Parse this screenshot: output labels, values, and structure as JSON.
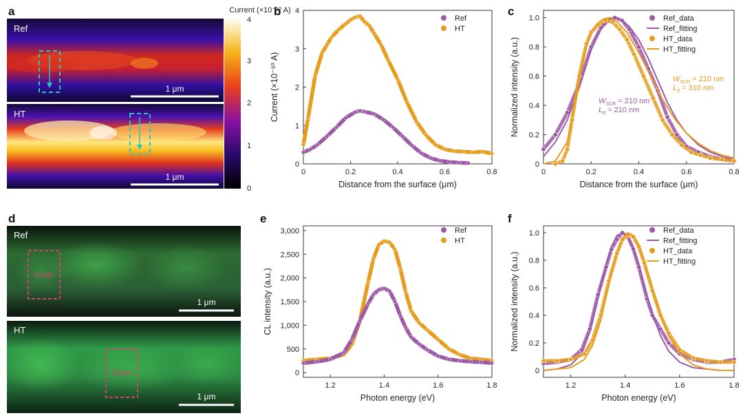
{
  "panel_letters": {
    "a": "a",
    "b": "b",
    "c": "c",
    "d": "d",
    "e": "e",
    "f": "f"
  },
  "colors": {
    "ref": "#9b59a6",
    "ht": "#e69d1e",
    "scale": "#ffffff",
    "box_cyan": "#2ec4b6",
    "box_red": "#d04070"
  },
  "panel_a": {
    "colorbar_title": "Current (×10⁻¹⁰ A)",
    "colorbar_ticks": [
      "4",
      "3",
      "2",
      "1",
      "0"
    ],
    "ref_label": "Ref",
    "ht_label": "HT",
    "scalebar_label": "1 μm"
  },
  "panel_d": {
    "ref_label": "Ref",
    "ht_label": "HT",
    "grain_label": "Grain",
    "scalebar_label": "1 μm"
  },
  "chart_data": [
    {
      "id": "b",
      "type": "line",
      "xlabel": "Distance from the surface (μm)",
      "ylabel": "Current (×10⁻¹⁰ A)",
      "xlim": [
        0,
        0.8
      ],
      "ylim": [
        0,
        4
      ],
      "xticks": [
        0,
        0.2,
        0.4,
        0.6,
        0.8
      ],
      "xtick_labels": [
        "0",
        "0.2",
        "0.4",
        "0.6",
        "0.8"
      ],
      "yticks": [
        0,
        1,
        2,
        3,
        4
      ],
      "ytick_labels": [
        "0",
        "1",
        "2",
        "3",
        "4"
      ],
      "legend": [
        "Ref",
        "HT"
      ],
      "series": [
        {
          "name": "HT",
          "color": "ht",
          "x": [
            0,
            0.02,
            0.05,
            0.08,
            0.1,
            0.12,
            0.15,
            0.18,
            0.2,
            0.22,
            0.24,
            0.26,
            0.28,
            0.3,
            0.33,
            0.36,
            0.4,
            0.44,
            0.48,
            0.52,
            0.56,
            0.6,
            0.64,
            0.68,
            0.72,
            0.76,
            0.8
          ],
          "y": [
            0.5,
            1.2,
            2.3,
            2.9,
            3.1,
            3.3,
            3.5,
            3.65,
            3.75,
            3.82,
            3.85,
            3.7,
            3.6,
            3.4,
            3.1,
            2.7,
            2.2,
            1.6,
            1.1,
            0.75,
            0.5,
            0.38,
            0.33,
            0.32,
            0.3,
            0.32,
            0.27
          ]
        },
        {
          "name": "Ref",
          "color": "ref",
          "x": [
            0,
            0.03,
            0.06,
            0.1,
            0.14,
            0.18,
            0.22,
            0.24,
            0.26,
            0.3,
            0.34,
            0.38,
            0.42,
            0.46,
            0.5,
            0.54,
            0.58,
            0.62,
            0.66,
            0.7
          ],
          "y": [
            0.3,
            0.38,
            0.5,
            0.72,
            0.95,
            1.2,
            1.35,
            1.38,
            1.36,
            1.3,
            1.15,
            0.95,
            0.72,
            0.48,
            0.28,
            0.15,
            0.08,
            0.05,
            0.03,
            0.02
          ]
        }
      ]
    },
    {
      "id": "c",
      "type": "line",
      "xlabel": "Distance from the surface (μm)",
      "ylabel": "Normalized intensity (a.u.)",
      "xlim": [
        0,
        0.8
      ],
      "ylim": [
        0,
        1.05
      ],
      "xticks": [
        0,
        0.2,
        0.4,
        0.6,
        0.8
      ],
      "xtick_labels": [
        "0",
        "0.2",
        "0.4",
        "0.6",
        "0.8"
      ],
      "yticks": [
        0,
        0.2,
        0.4,
        0.6,
        0.8,
        1.0
      ],
      "ytick_labels": [
        "0",
        "0.2",
        "0.4",
        "0.6",
        "0.8",
        "1.0"
      ],
      "legend": [
        "Ref_data",
        "Ref_fitting",
        "HT_data",
        "HT_fitting"
      ],
      "annotations": [
        {
          "text": "W_SCR = 210 nm, L_d = 210 nm",
          "main1": "W",
          "sub1": "SCR",
          "rest1": " = 210 nm",
          "main2": "L",
          "sub2": "d",
          "rest2": " = 210 nm",
          "color": "ref"
        },
        {
          "text": "W_SCR = 210 nm, L_d = 310 nm",
          "main1": "W",
          "sub1": "SCR",
          "rest1": " = 210 nm",
          "main2": "L",
          "sub2": "d",
          "rest2": " = 310 nm",
          "color": "ht"
        }
      ],
      "series": [
        {
          "name": "Ref_data",
          "color": "ref",
          "style": "markers",
          "x": [
            0,
            0.05,
            0.1,
            0.15,
            0.2,
            0.24,
            0.27,
            0.3,
            0.33,
            0.36,
            0.4,
            0.44,
            0.48,
            0.52,
            0.56,
            0.6,
            0.65,
            0.7,
            0.75,
            0.8
          ],
          "y": [
            0.1,
            0.2,
            0.35,
            0.55,
            0.8,
            0.93,
            0.98,
            1.0,
            0.98,
            0.92,
            0.8,
            0.65,
            0.5,
            0.32,
            0.2,
            0.12,
            0.08,
            0.05,
            0.03,
            0.02
          ]
        },
        {
          "name": "Ref_fitting",
          "color": "ref",
          "style": "line",
          "x": [
            0,
            0.05,
            0.1,
            0.15,
            0.2,
            0.24,
            0.28,
            0.3,
            0.33,
            0.36,
            0.4,
            0.44,
            0.48,
            0.52,
            0.56,
            0.6,
            0.65,
            0.7,
            0.75,
            0.8
          ],
          "y": [
            0.05,
            0.15,
            0.3,
            0.52,
            0.78,
            0.92,
            0.99,
            1.0,
            0.98,
            0.94,
            0.85,
            0.72,
            0.57,
            0.42,
            0.3,
            0.21,
            0.13,
            0.08,
            0.05,
            0.03
          ]
        },
        {
          "name": "HT_data",
          "color": "ht",
          "style": "markers",
          "x": [
            0.05,
            0.08,
            0.1,
            0.12,
            0.15,
            0.18,
            0.2,
            0.23,
            0.26,
            0.29,
            0.32,
            0.35,
            0.38,
            0.42,
            0.46,
            0.5,
            0.54,
            0.58,
            0.62,
            0.66,
            0.7,
            0.75,
            0.8
          ],
          "y": [
            0.0,
            0.02,
            0.1,
            0.3,
            0.6,
            0.82,
            0.9,
            0.95,
            0.98,
            0.97,
            0.92,
            0.85,
            0.75,
            0.6,
            0.45,
            0.3,
            0.2,
            0.13,
            0.08,
            0.06,
            0.04,
            0.03,
            0.02
          ]
        },
        {
          "name": "HT_fitting",
          "color": "ht",
          "style": "line",
          "x": [
            0,
            0.05,
            0.1,
            0.13,
            0.16,
            0.19,
            0.22,
            0.25,
            0.28,
            0.31,
            0.35,
            0.4,
            0.45,
            0.5,
            0.55,
            0.6,
            0.65,
            0.7,
            0.75,
            0.8
          ],
          "y": [
            0.0,
            0.02,
            0.15,
            0.4,
            0.67,
            0.86,
            0.95,
            0.99,
            1.0,
            0.97,
            0.9,
            0.76,
            0.6,
            0.44,
            0.31,
            0.21,
            0.14,
            0.09,
            0.06,
            0.04
          ]
        }
      ]
    },
    {
      "id": "e",
      "type": "line",
      "xlabel": "Photon energy (eV)",
      "ylabel": "CL intensity (a.u.)",
      "xlim": [
        1.1,
        1.8
      ],
      "ylim": [
        -100,
        3100
      ],
      "xticks": [
        1.2,
        1.4,
        1.6,
        1.8
      ],
      "xtick_labels": [
        "1.2",
        "1.4",
        "1.6",
        "1.8"
      ],
      "yticks": [
        0,
        500,
        1000,
        1500,
        2000,
        2500,
        3000
      ],
      "ytick_labels": [
        "0",
        "500",
        "1,000",
        "1,500",
        "2,000",
        "2,500",
        "3,000"
      ],
      "legend": [
        "Ref",
        "HT"
      ],
      "series": [
        {
          "name": "HT",
          "color": "ht",
          "x": [
            1.1,
            1.15,
            1.2,
            1.25,
            1.28,
            1.31,
            1.34,
            1.36,
            1.38,
            1.4,
            1.42,
            1.44,
            1.46,
            1.48,
            1.5,
            1.53,
            1.56,
            1.6,
            1.64,
            1.68,
            1.72,
            1.76,
            1.8
          ],
          "y": [
            250,
            280,
            300,
            380,
            600,
            1100,
            1900,
            2400,
            2700,
            2780,
            2750,
            2600,
            2200,
            1700,
            1300,
            1050,
            900,
            700,
            500,
            380,
            300,
            280,
            250
          ]
        },
        {
          "name": "Ref",
          "color": "ref",
          "x": [
            1.1,
            1.15,
            1.2,
            1.25,
            1.28,
            1.31,
            1.34,
            1.36,
            1.38,
            1.4,
            1.42,
            1.44,
            1.46,
            1.48,
            1.5,
            1.53,
            1.56,
            1.6,
            1.64,
            1.68,
            1.72,
            1.76,
            1.8
          ],
          "y": [
            200,
            230,
            280,
            420,
            700,
            1100,
            1450,
            1650,
            1750,
            1780,
            1720,
            1500,
            1200,
            950,
            750,
            600,
            480,
            350,
            280,
            250,
            230,
            220,
            200
          ]
        }
      ]
    },
    {
      "id": "f",
      "type": "line",
      "xlabel": "Photon energy (eV)",
      "ylabel": "Normalized intensity (a.u.)",
      "xlim": [
        1.1,
        1.8
      ],
      "ylim": [
        -0.05,
        1.05
      ],
      "xticks": [
        1.2,
        1.4,
        1.6,
        1.8
      ],
      "xtick_labels": [
        "1.2",
        "1.4",
        "1.6",
        "1.8"
      ],
      "yticks": [
        0,
        0.2,
        0.4,
        0.6,
        0.8,
        1.0
      ],
      "ytick_labels": [
        "0",
        "0.2",
        "0.4",
        "0.6",
        "0.8",
        "1.0"
      ],
      "legend": [
        "Ref_data",
        "Ref_fitting",
        "HT_data",
        "HT_fitting"
      ],
      "series": [
        {
          "name": "Ref_data",
          "color": "ref",
          "style": "markers",
          "x": [
            1.1,
            1.15,
            1.2,
            1.24,
            1.27,
            1.3,
            1.33,
            1.35,
            1.37,
            1.39,
            1.41,
            1.43,
            1.45,
            1.48,
            1.5,
            1.53,
            1.56,
            1.6,
            1.65,
            1.7,
            1.75,
            1.8
          ],
          "y": [
            0.05,
            0.06,
            0.08,
            0.15,
            0.3,
            0.55,
            0.75,
            0.88,
            0.95,
            1.0,
            0.97,
            0.88,
            0.75,
            0.52,
            0.4,
            0.3,
            0.2,
            0.12,
            0.08,
            0.06,
            0.06,
            0.08
          ]
        },
        {
          "name": "Ref_fitting",
          "color": "ref",
          "style": "line",
          "x": [
            1.1,
            1.15,
            1.2,
            1.24,
            1.27,
            1.3,
            1.33,
            1.35,
            1.37,
            1.39,
            1.41,
            1.43,
            1.45,
            1.48,
            1.5,
            1.53,
            1.56,
            1.6,
            1.65,
            1.7,
            1.75,
            1.8
          ],
          "y": [
            0.0,
            0.01,
            0.04,
            0.12,
            0.28,
            0.52,
            0.77,
            0.9,
            0.98,
            1.0,
            0.97,
            0.89,
            0.77,
            0.55,
            0.41,
            0.25,
            0.14,
            0.06,
            0.02,
            0.01,
            0.0,
            0.0
          ]
        },
        {
          "name": "HT_data",
          "color": "ht",
          "style": "markers",
          "x": [
            1.1,
            1.15,
            1.2,
            1.25,
            1.28,
            1.31,
            1.34,
            1.37,
            1.39,
            1.41,
            1.43,
            1.45,
            1.47,
            1.5,
            1.53,
            1.56,
            1.6,
            1.65,
            1.7,
            1.75,
            1.8
          ],
          "y": [
            0.07,
            0.07,
            0.08,
            0.12,
            0.22,
            0.4,
            0.65,
            0.85,
            0.95,
            0.98,
            0.97,
            0.9,
            0.78,
            0.58,
            0.4,
            0.27,
            0.15,
            0.09,
            0.07,
            0.06,
            0.06
          ]
        },
        {
          "name": "HT_fitting",
          "color": "ht",
          "style": "line",
          "x": [
            1.1,
            1.15,
            1.2,
            1.25,
            1.28,
            1.31,
            1.34,
            1.37,
            1.39,
            1.41,
            1.43,
            1.45,
            1.47,
            1.5,
            1.53,
            1.56,
            1.6,
            1.65,
            1.7,
            1.75,
            1.8
          ],
          "y": [
            0.0,
            0.01,
            0.02,
            0.08,
            0.18,
            0.36,
            0.62,
            0.86,
            0.96,
            1.0,
            0.98,
            0.91,
            0.8,
            0.6,
            0.4,
            0.25,
            0.12,
            0.04,
            0.01,
            0.0,
            0.0
          ]
        }
      ]
    }
  ]
}
